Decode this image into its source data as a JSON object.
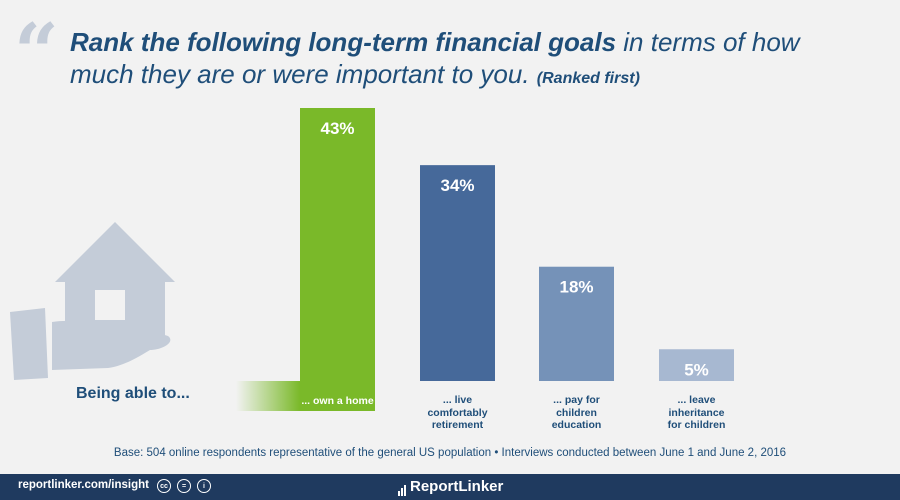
{
  "header": {
    "quote_mark": "“",
    "title_bold": "Rank the following long-term financial goals",
    "title_rest": " in terms of how much they are or were important to you.",
    "title_note": "(Ranked first)"
  },
  "chart_data": {
    "type": "bar",
    "categories": [
      "... own a home",
      "... live comfortably retirement",
      "... pay for children education",
      "... leave inheritance for children"
    ],
    "values": [
      43,
      34,
      18,
      5
    ],
    "value_labels": [
      "43%",
      "34%",
      "18%",
      "5%"
    ],
    "category_lines": [
      [
        "... own a home"
      ],
      [
        "... live",
        "comfortably",
        "retirement"
      ],
      [
        "... pay for",
        "children",
        "education"
      ],
      [
        "... leave",
        "inheritance",
        "for children"
      ]
    ],
    "lead_label": "Being able to...",
    "colors": [
      "#7ab929",
      "#46699a",
      "#7592b8",
      "#a7b8d1"
    ],
    "ylim": [
      0,
      43
    ]
  },
  "footnote": "Base: 504 online respondents representative of the general US population • Interviews conducted between June 1 and June 2, 2016",
  "footer": {
    "site": "reportlinker.com/insight",
    "brand": "ReportLinker",
    "license_icons": [
      "cc-icon",
      "equal-icon",
      "person-icon"
    ]
  },
  "colors": {
    "title": "#1f4e79",
    "footer_bg": "#1f3a5f",
    "icon": "#c4ccd8",
    "background": "#f2f2f2"
  }
}
